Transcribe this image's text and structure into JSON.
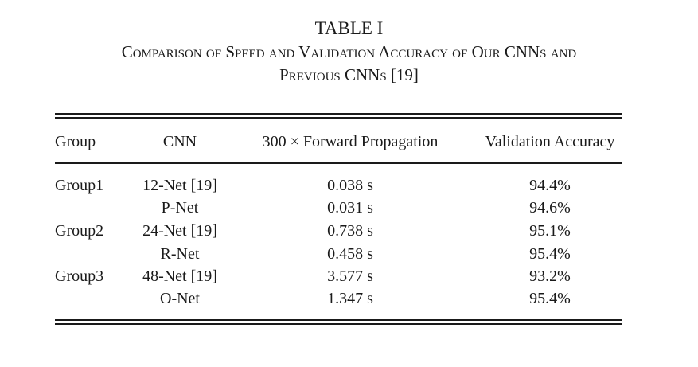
{
  "table": {
    "label": "TABLE I",
    "title_line_1": "Comparison of Speed and Validation Accuracy of Our CNNs and",
    "title_line_2": "Previous CNNs [19]",
    "headers": [
      "Group",
      "CNN",
      "300 × Forward Propagation",
      "Validation Accuracy"
    ],
    "rows": [
      {
        "group": "Group1",
        "cnn": "12-Net [19]",
        "forward": "0.038 s",
        "accuracy": "94.4%"
      },
      {
        "group": "",
        "cnn": "P-Net",
        "forward": "0.031 s",
        "accuracy": "94.6%"
      },
      {
        "group": "Group2",
        "cnn": "24-Net [19]",
        "forward": "0.738 s",
        "accuracy": "95.1%"
      },
      {
        "group": "",
        "cnn": "R-Net",
        "forward": "0.458 s",
        "accuracy": "95.4%"
      },
      {
        "group": "Group3",
        "cnn": "48-Net [19]",
        "forward": "3.577 s",
        "accuracy": "93.2%"
      },
      {
        "group": "",
        "cnn": "O-Net",
        "forward": "1.347 s",
        "accuracy": "95.4%"
      }
    ]
  }
}
